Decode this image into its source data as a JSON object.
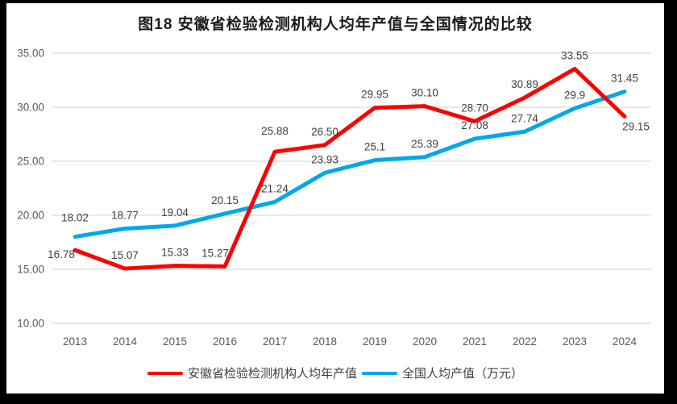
{
  "title": "图18 安徽省检验检测机构人均年产值与全国情况的比较",
  "colors": {
    "anhui_red": "#fe0000",
    "national_blue": "#00a8e8",
    "gridline": "#d9d9d9",
    "axis_text": "#595959",
    "data_label_text": "#404040",
    "frame_black": "#000000",
    "chart_background": "#ffffff"
  },
  "chart_data": {
    "type": "line",
    "categories": [
      "2013",
      "2014",
      "2015",
      "2016",
      "2017",
      "2018",
      "2019",
      "2020",
      "2021",
      "2022",
      "2023",
      "2024"
    ],
    "series": [
      {
        "name": "安徽省检验检测机构人均年产值",
        "color_key": "anhui_red",
        "values": [
          16.78,
          15.07,
          15.33,
          15.27,
          25.88,
          26.5,
          29.95,
          30.1,
          28.7,
          30.89,
          33.55,
          29.15
        ],
        "labels": [
          "16.78",
          "15.07",
          "15.33",
          "15.27",
          "25.88",
          "26.50",
          "29.95",
          "30.10",
          "28.70",
          "30.89",
          "33.55",
          "29.15"
        ]
      },
      {
        "name": "全国人均产值（万元）",
        "color_key": "national_blue",
        "values": [
          18.02,
          18.77,
          19.04,
          20.15,
          21.24,
          23.93,
          25.1,
          25.39,
          27.08,
          27.74,
          29.9,
          31.45
        ],
        "labels": [
          "18.02",
          "18.77",
          "19.04",
          "20.15",
          "21.24",
          "23.93",
          "25.1",
          "25.39",
          "27.08",
          "27.74",
          "29.9",
          "31.45"
        ]
      }
    ],
    "y_ticks": [
      "35.00",
      "30.00",
      "25.00",
      "20.00",
      "15.00",
      "10.00"
    ],
    "y_tick_values": [
      35,
      30,
      25,
      20,
      15,
      10
    ],
    "ylim": [
      10,
      35
    ],
    "xlabel": "",
    "ylabel": "",
    "grid": true,
    "legend_position": "bottom",
    "label_offsets": {
      "0": {
        "0": [
          -17,
          22
        ],
        "3": [
          -12,
          0
        ],
        "4": [
          0,
          -9
        ],
        "11": [
          14,
          29
        ]
      },
      "1": {
        "0": [
          0,
          -7
        ]
      }
    }
  },
  "legend": {
    "items": [
      {
        "label": "安徽省检验检测机构人均年产值",
        "color_key": "anhui_red"
      },
      {
        "label": "全国人均产值（万元）",
        "color_key": "national_blue"
      }
    ]
  }
}
